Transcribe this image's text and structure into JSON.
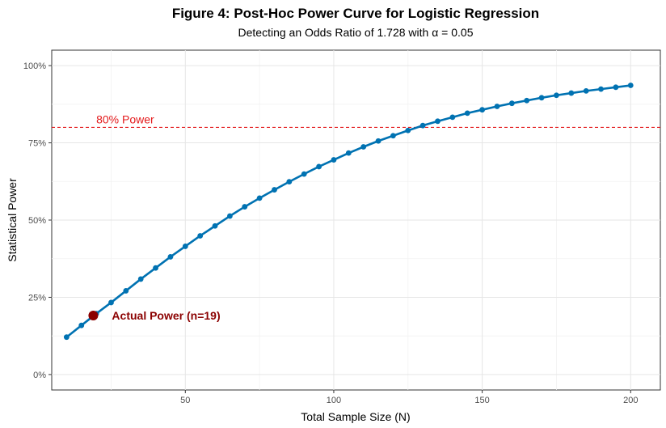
{
  "chart_data": {
    "type": "line",
    "title": "Figure 4: Post-Hoc Power Curve for Logistic Regression",
    "subtitle": "Detecting an Odds Ratio of 1.728 with α = 0.05",
    "xlabel": "Total Sample Size (N)",
    "ylabel": "Statistical Power",
    "xlim": [
      5,
      210
    ],
    "ylim": [
      -0.05,
      1.05
    ],
    "x_ticks": [
      50,
      100,
      150,
      200
    ],
    "x_tick_labels": [
      "50",
      "100",
      "150",
      "200"
    ],
    "y_ticks": [
      0,
      0.25,
      0.5,
      0.75,
      1.0
    ],
    "y_tick_labels": [
      "0%",
      "25%",
      "50%",
      "75%",
      "100%"
    ],
    "grid": true,
    "series": [
      {
        "name": "Power",
        "x": [
          10,
          15,
          20,
          25,
          30,
          35,
          40,
          45,
          50,
          55,
          60,
          65,
          70,
          75,
          80,
          85,
          90,
          95,
          100,
          105,
          110,
          115,
          120,
          125,
          130,
          135,
          140,
          145,
          150,
          155,
          160,
          165,
          170,
          175,
          180,
          185,
          190,
          195,
          200
        ],
        "values": [
          0.121,
          0.159,
          0.197,
          0.233,
          0.271,
          0.309,
          0.345,
          0.381,
          0.415,
          0.449,
          0.481,
          0.513,
          0.543,
          0.571,
          0.598,
          0.624,
          0.649,
          0.673,
          0.695,
          0.717,
          0.737,
          0.756,
          0.773,
          0.79,
          0.806,
          0.82,
          0.833,
          0.846,
          0.857,
          0.868,
          0.878,
          0.887,
          0.896,
          0.904,
          0.911,
          0.918,
          0.924,
          0.93,
          0.936
        ],
        "color": "#0072B2"
      }
    ],
    "reference_line": {
      "y": 0.8,
      "label": "80% Power",
      "color": "#E41A1C",
      "style": "dashed"
    },
    "highlight_point": {
      "x": 19,
      "y": 0.191,
      "label": "Actual Power (n=19)",
      "color": "#8B0000"
    }
  }
}
